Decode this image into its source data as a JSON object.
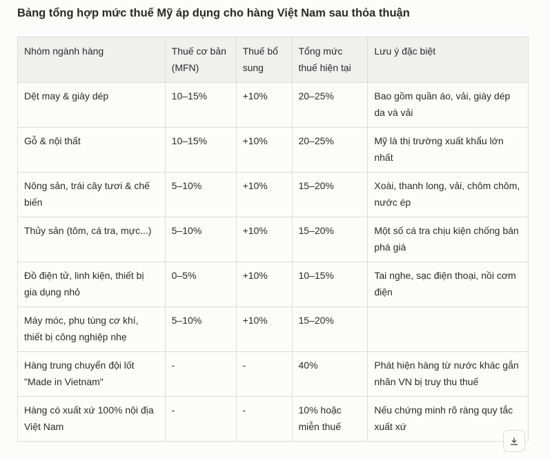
{
  "title": "Bảng tổng hợp mức thuế Mỹ áp dụng cho hàng Việt Nam sau thỏa thuận",
  "table": {
    "headers": [
      "Nhóm ngành hàng",
      "Thuế cơ bản (MFN)",
      "Thuế bổ sung",
      "Tổng mức thuế hiện tại",
      "Lưu ý đặc biệt"
    ],
    "rows": [
      [
        "Dệt may & giày dép",
        "10–15%",
        "+10%",
        "20–25%",
        "Bao gồm quần áo, vải, giày dép da và vải"
      ],
      [
        "Gỗ & nội thất",
        "10–15%",
        "+10%",
        "20–25%",
        "Mỹ là thị trường xuất khẩu lớn nhất"
      ],
      [
        "Nông sản, trái cây tươi & chế biến",
        "5–10%",
        "+10%",
        "15–20%",
        "Xoài, thanh long, vải, chôm chôm, nước ép"
      ],
      [
        "Thủy sản (tôm, cá tra, mực...)",
        "5–10%",
        "+10%",
        "15–20%",
        "Một số cá tra chịu kiện chống bán phá giá"
      ],
      [
        "Đồ điện tử, linh kiện, thiết bị gia dụng nhỏ",
        "0–5%",
        "+10%",
        "10–15%",
        "Tai nghe, sạc điện thoại, nồi cơm điện"
      ],
      [
        "Máy móc, phụ tùng cơ khí, thiết bị công nghiệp nhẹ",
        "5–10%",
        "+10%",
        "15–20%",
        ""
      ],
      [
        "Hàng trung chuyển đội lốt \"Made in Vietnam\"",
        "-",
        "-",
        "40%",
        "Phát hiện hàng từ nước khác gắn nhãn VN bị truy thu thuế"
      ],
      [
        "Hàng có xuất xứ 100% nội địa Việt Nam",
        "-",
        "-",
        "10% hoặc miễn thuế",
        "Nếu chứng minh rõ ràng quy tắc xuất xứ"
      ]
    ]
  },
  "icons": {
    "download": "download-icon"
  }
}
